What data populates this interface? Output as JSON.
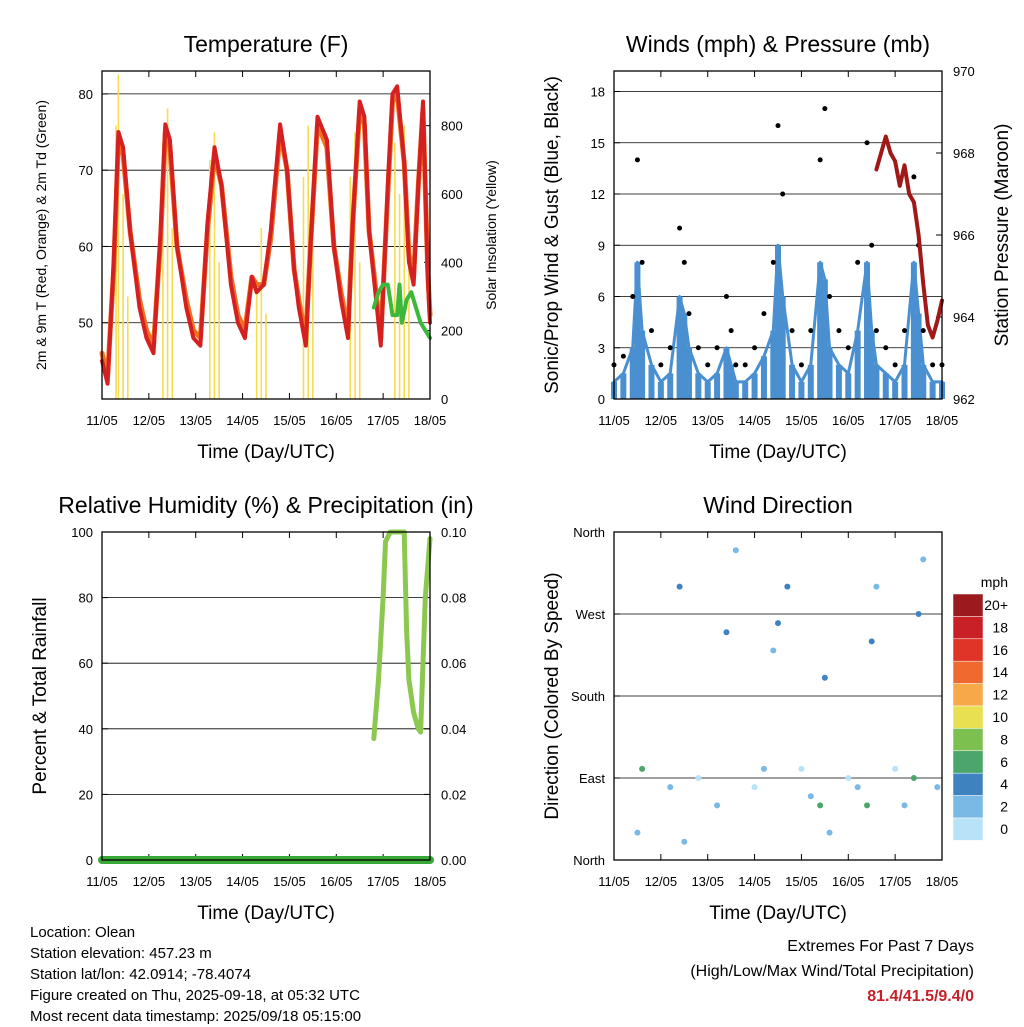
{
  "chart_data": [
    {
      "type": "line",
      "title": "Temperature (F)",
      "xlabel": "Time (Day/UTC)",
      "ylabel": "2m & 9m T (Red, Orange) & 2m Td (Green)",
      "y2label": "Solar Insolation (Yellow)",
      "xticks": [
        "11/05",
        "12/05",
        "13/05",
        "14/05",
        "15/05",
        "16/05",
        "17/05",
        "18/05"
      ],
      "xlim": [
        0,
        7
      ],
      "ylim": [
        40,
        83
      ],
      "yticks": [
        50,
        60,
        70,
        80
      ],
      "y2lim": [
        0,
        960
      ],
      "y2ticks": [
        0,
        200,
        400,
        600,
        800
      ],
      "grid": true,
      "colors": {
        "t2m": "#d42020",
        "t9m": "#f07020",
        "td": "#3cb83c",
        "solar": "#f5dc50"
      },
      "series": [
        {
          "name": "2m T",
          "x": [
            0,
            0.12,
            0.25,
            0.35,
            0.45,
            0.6,
            0.8,
            0.95,
            1.1,
            1.25,
            1.35,
            1.45,
            1.6,
            1.8,
            1.95,
            2.1,
            2.25,
            2.4,
            2.55,
            2.75,
            2.9,
            3.05,
            3.2,
            3.3,
            3.45,
            3.6,
            3.8,
            3.95,
            4.1,
            4.2,
            4.35,
            4.45,
            4.6,
            4.8,
            4.95,
            5.1,
            5.25,
            5.35,
            5.5,
            5.6,
            5.7,
            5.85,
            5.95,
            6.1,
            6.2,
            6.3,
            6.45,
            6.55,
            6.65,
            6.75,
            6.85,
            6.95,
            7
          ],
          "values": [
            45,
            42,
            58,
            75,
            73,
            62,
            52,
            48,
            46,
            62,
            76,
            74,
            60,
            52,
            48,
            47,
            63,
            73,
            68,
            55,
            50,
            48,
            56,
            54,
            55,
            62,
            76,
            70,
            57,
            52,
            47,
            60,
            77,
            74,
            60,
            53,
            48,
            63,
            79,
            77,
            62,
            53,
            47,
            68,
            80,
            81,
            71,
            58,
            55,
            68,
            79,
            56,
            50
          ]
        },
        {
          "name": "9m T",
          "x": [
            0,
            0.12,
            0.25,
            0.35,
            0.45,
            0.6,
            0.8,
            0.95,
            1.1,
            1.25,
            1.35,
            1.45,
            1.6,
            1.8,
            1.95,
            2.1,
            2.25,
            2.4,
            2.55,
            2.75,
            2.9,
            3.05,
            3.2,
            3.3,
            3.45,
            3.6,
            3.8,
            3.95,
            4.1,
            4.2,
            4.35,
            4.45,
            4.6,
            4.8,
            4.95,
            5.1,
            5.25,
            5.35,
            5.5,
            5.6,
            5.7,
            5.85,
            5.95,
            6.1,
            6.2,
            6.3,
            6.45,
            6.55,
            6.65,
            6.75,
            6.85,
            6.95,
            7
          ],
          "values": [
            46,
            43,
            57,
            74,
            72,
            62,
            53,
            49,
            47,
            61,
            75,
            73,
            60,
            53,
            49,
            48,
            62,
            72,
            68,
            56,
            51,
            49,
            56,
            55,
            55,
            61,
            75,
            70,
            57,
            53,
            48,
            60,
            76,
            73,
            60,
            54,
            49,
            63,
            78,
            76,
            62,
            54,
            48,
            67,
            79,
            80,
            71,
            59,
            56,
            68,
            78,
            57,
            51
          ]
        },
        {
          "name": "2m Td",
          "x": [
            5.8,
            5.9,
            6.0,
            6.1,
            6.2,
            6.3,
            6.35,
            6.4,
            6.5,
            6.6,
            6.7,
            6.8,
            6.9,
            7
          ],
          "values": [
            52,
            54,
            55,
            55,
            51,
            51,
            55,
            50,
            53,
            54,
            52,
            50,
            49,
            48
          ]
        },
        {
          "name": "Solar",
          "x": [
            0.3,
            0.35,
            0.45,
            0.55,
            1.3,
            1.4,
            1.5,
            2.3,
            2.4,
            2.5,
            3.3,
            3.4,
            3.5,
            4.3,
            4.4,
            4.5,
            5.3,
            5.4,
            5.5,
            6.25,
            6.35,
            6.45,
            6.55
          ],
          "values": [
            800,
            950,
            600,
            300,
            750,
            850,
            500,
            700,
            780,
            400,
            350,
            500,
            250,
            650,
            800,
            450,
            650,
            780,
            400,
            750,
            600,
            800,
            500
          ]
        }
      ]
    },
    {
      "type": "scatter",
      "title": "Winds (mph) & Pressure (mb)",
      "xlabel": "Time (Day/UTC)",
      "ylabel": "Sonic/Prop Wind & Gust (Blue, Black)",
      "y2label": "Station Pressure (Maroon)",
      "xticks": [
        "11/05",
        "12/05",
        "13/05",
        "14/05",
        "15/05",
        "16/05",
        "17/05",
        "18/05"
      ],
      "xlim": [
        0,
        7
      ],
      "ylim": [
        0,
        19.2
      ],
      "yticks": [
        0,
        3,
        6,
        9,
        12,
        15,
        18
      ],
      "y2lim": [
        962,
        970
      ],
      "y2ticks": [
        962,
        964,
        966,
        968,
        970
      ],
      "grid": true,
      "colors": {
        "wind": "#4a90d0",
        "gust": "#000000",
        "pressure": "#a01818"
      },
      "series": [
        {
          "name": "Wind",
          "x": [
            0,
            0.2,
            0.4,
            0.5,
            0.6,
            0.8,
            1.0,
            1.2,
            1.4,
            1.5,
            1.6,
            1.8,
            2.0,
            2.2,
            2.4,
            2.5,
            2.6,
            2.8,
            3.0,
            3.2,
            3.4,
            3.5,
            3.6,
            3.8,
            4.0,
            4.2,
            4.4,
            4.5,
            4.6,
            4.8,
            5.0,
            5.2,
            5.4,
            5.5,
            5.6,
            5.8,
            6.0,
            6.2,
            6.4,
            6.5,
            6.6,
            6.8,
            7.0
          ],
          "values": [
            1,
            1.5,
            3,
            8,
            4,
            2,
            1,
            1.5,
            6,
            5,
            3,
            1.5,
            1,
            1.5,
            3,
            2,
            1,
            1,
            1.5,
            2.5,
            4,
            9,
            6,
            2,
            1,
            2,
            8,
            7,
            3,
            2,
            1.5,
            4,
            8,
            4,
            2,
            1.5,
            1,
            2,
            8,
            5,
            2,
            1,
            1
          ]
        },
        {
          "name": "Gust",
          "x": [
            0,
            0.2,
            0.4,
            0.5,
            0.6,
            0.8,
            1.0,
            1.2,
            1.4,
            1.5,
            1.6,
            1.8,
            2.0,
            2.2,
            2.4,
            2.5,
            2.6,
            2.8,
            3.0,
            3.2,
            3.4,
            3.5,
            3.6,
            3.8,
            4.0,
            4.2,
            4.4,
            4.5,
            4.6,
            4.8,
            5.0,
            5.2,
            5.4,
            5.5,
            5.6,
            5.8,
            6.0,
            6.2,
            6.4,
            6.5,
            6.6,
            6.8,
            7.0
          ],
          "values": [
            2,
            2.5,
            6,
            14,
            8,
            4,
            2,
            3,
            10,
            8,
            5,
            3,
            2,
            3,
            6,
            4,
            2,
            2,
            3,
            5,
            8,
            16,
            12,
            4,
            2,
            4,
            14,
            17,
            6,
            4,
            3,
            8,
            15,
            9,
            4,
            3,
            2,
            4,
            13,
            9,
            4,
            2,
            2
          ]
        },
        {
          "name": "Pressure",
          "x": [
            5.6,
            5.7,
            5.8,
            5.9,
            6.0,
            6.1,
            6.2,
            6.3,
            6.4,
            6.5,
            6.6,
            6.7,
            6.8,
            6.9,
            7.0
          ],
          "values": [
            967.6,
            968.0,
            968.4,
            968.0,
            967.8,
            967.2,
            967.7,
            967.0,
            966.8,
            966.0,
            964.8,
            963.8,
            963.5,
            963.9,
            964.4
          ]
        }
      ]
    },
    {
      "type": "line",
      "title": "Relative Humidity (%) & Precipitation (in)",
      "xlabel": "Time (Day/UTC)",
      "ylabel": "Percent & Total Rainfall",
      "xticks": [
        "11/05",
        "12/05",
        "13/05",
        "14/05",
        "15/05",
        "16/05",
        "17/05",
        "18/05"
      ],
      "xlim": [
        0,
        7
      ],
      "ylim": [
        0,
        100
      ],
      "yticks": [
        0,
        20,
        40,
        60,
        80,
        100
      ],
      "y2lim": [
        0,
        0.1
      ],
      "y2ticks": [
        "0.00",
        "0.02",
        "0.04",
        "0.06",
        "0.08",
        "0.10"
      ],
      "grid": true,
      "colors": {
        "rh": "#8cc850",
        "precip": "#38a838"
      },
      "series": [
        {
          "name": "RH",
          "x": [
            5.8,
            5.9,
            6.0,
            6.05,
            6.15,
            6.3,
            6.45,
            6.5,
            6.55,
            6.65,
            6.75,
            6.8,
            6.9,
            7.0
          ],
          "values": [
            37,
            55,
            80,
            97,
            100,
            100,
            100,
            70,
            55,
            45,
            40,
            39,
            80,
            98
          ]
        },
        {
          "name": "Precip",
          "x": [
            0,
            7
          ],
          "values": [
            0,
            0
          ]
        }
      ]
    },
    {
      "type": "scatter",
      "title": "Wind Direction",
      "xlabel": "Time (Day/UTC)",
      "ylabel": "Direction (Colored By Speed)",
      "xticks": [
        "11/05",
        "12/05",
        "13/05",
        "14/05",
        "15/05",
        "16/05",
        "17/05",
        "18/05"
      ],
      "xlim": [
        0,
        7
      ],
      "ylim": [
        0,
        360
      ],
      "yticks": [
        "North",
        "East",
        "South",
        "West",
        "North"
      ],
      "grid": true,
      "colorbar": {
        "title": "mph",
        "labels": [
          "20+",
          "18",
          "16",
          "14",
          "12",
          "10",
          "8",
          "6",
          "4",
          "2",
          "0"
        ],
        "colors": [
          "#9c1a1e",
          "#c82026",
          "#e03428",
          "#f06a30",
          "#f7a848",
          "#e8e050",
          "#7cc050",
          "#4aa66a",
          "#3e82c0",
          "#7ab8e6",
          "#b8e2f8"
        ]
      },
      "series": [
        {
          "name": "Direction",
          "x": [
            0.5,
            0.6,
            1.2,
            1.4,
            1.5,
            1.8,
            2.2,
            2.4,
            2.6,
            3.0,
            3.2,
            3.4,
            3.5,
            3.7,
            4.0,
            4.2,
            4.4,
            4.5,
            4.6,
            5.0,
            5.2,
            5.4,
            5.5,
            5.6,
            6.0,
            6.2,
            6.4,
            6.5,
            6.6,
            6.9
          ],
          "values": [
            30,
            100,
            80,
            300,
            20,
            90,
            60,
            250,
            340,
            80,
            100,
            230,
            260,
            300,
            100,
            70,
            60,
            200,
            30,
            90,
            80,
            60,
            240,
            300,
            100,
            60,
            90,
            270,
            330,
            80
          ],
          "speeds": [
            3,
            6,
            2,
            4,
            3,
            1,
            2,
            4,
            3,
            1,
            2,
            3,
            5,
            4,
            1,
            2,
            7,
            4,
            3,
            1,
            2,
            6,
            4,
            3,
            1,
            2,
            6,
            4,
            3,
            2
          ]
        }
      ]
    }
  ],
  "footer": {
    "location": "Location: Olean",
    "elevation": "Station elevation: 457.23 m",
    "latlon": "Station lat/lon: 42.0914; -78.4074",
    "created": "Figure created on Thu, 2025-09-18, at 05:32 UTC",
    "recent": "Most recent data timestamp: 2025/09/18 05:15:00"
  },
  "extremes": {
    "title": "Extremes For Past 7 Days",
    "subtitle": "(High/Low/Max Wind/Total Precipitation)",
    "values": "81.4/41.5/9.4/0"
  }
}
